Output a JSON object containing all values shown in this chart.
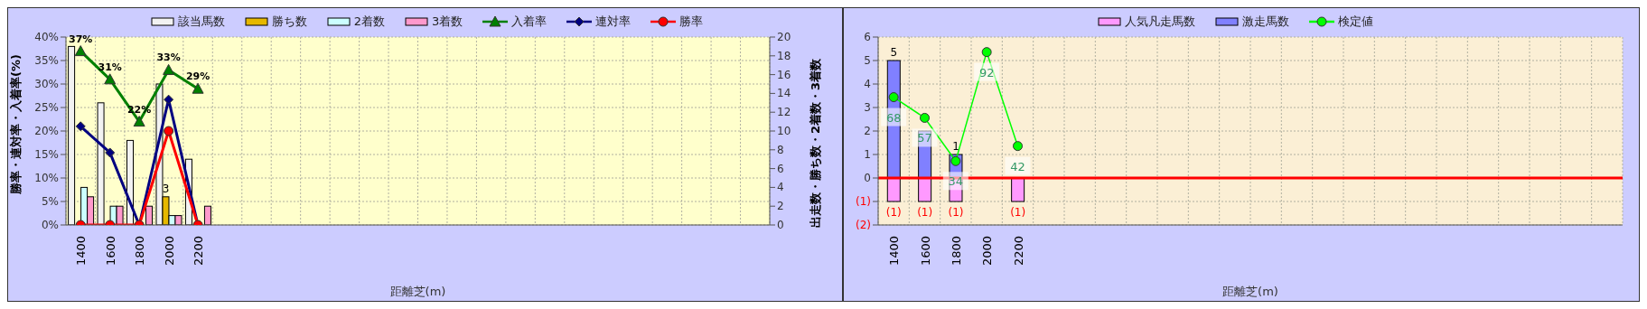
{
  "chart_data": [
    {
      "type": "bar",
      "categories": [
        "1400",
        "1600",
        "1800",
        "2000",
        "2200",
        null,
        null,
        null,
        null,
        null,
        null,
        null,
        null,
        null,
        null,
        null,
        null,
        null,
        null,
        null,
        null,
        null,
        null,
        null
      ],
      "xlabel": "距離芝(m)",
      "ylabel": "勝率・連対率・入着率(%)",
      "y2label": "出走数・勝ち数・2着数・3着数",
      "series": [
        {
          "name": "該当馬数",
          "axis": "y2",
          "color": "#f2f2f2",
          "values": [
            19,
            13,
            9,
            15,
            7,
            null,
            null,
            null,
            null,
            null,
            null,
            null,
            null,
            null,
            null,
            null,
            null,
            null,
            null,
            null,
            null,
            null,
            null,
            null
          ]
        },
        {
          "name": "勝ち数",
          "axis": "y2",
          "color": "#e6b800",
          "values": [
            0,
            0,
            0,
            3,
            0,
            null,
            null,
            null,
            null,
            null,
            null,
            null,
            null,
            null,
            null,
            null,
            null,
            null,
            null,
            null,
            null,
            null,
            null,
            null
          ],
          "value_labels": [
            null,
            null,
            null,
            "3",
            null,
            null,
            null,
            null,
            null,
            null,
            null,
            null,
            null,
            null,
            null,
            null,
            null,
            null,
            null,
            null,
            null,
            null,
            null,
            null
          ]
        },
        {
          "name": "2着数",
          "axis": "y2",
          "color": "#ccffff",
          "values": [
            4,
            2,
            0,
            1,
            0,
            null,
            null,
            null,
            null,
            null,
            null,
            null,
            null,
            null,
            null,
            null,
            null,
            null,
            null,
            null,
            null,
            null,
            null,
            null
          ]
        },
        {
          "name": "3着数",
          "axis": "y2",
          "color": "#ff99cc",
          "values": [
            3,
            2,
            2,
            1,
            2,
            null,
            null,
            null,
            null,
            null,
            null,
            null,
            null,
            null,
            null,
            null,
            null,
            null,
            null,
            null,
            null,
            null,
            null,
            null
          ]
        },
        {
          "name": "入着率",
          "type": "line",
          "axis": "y",
          "color": "#008000",
          "marker": "triangle",
          "values": [
            37,
            31,
            22,
            33,
            29,
            null,
            null,
            null,
            null,
            null,
            null,
            null,
            null,
            null,
            null,
            null,
            null,
            null,
            null,
            null,
            null,
            null,
            null,
            null
          ],
          "value_labels": [
            "37%",
            "31%",
            "22%",
            "33%",
            "29%",
            null,
            null,
            null,
            null,
            null,
            null,
            null,
            null,
            null,
            null,
            null,
            null,
            null,
            null,
            null,
            null,
            null,
            null,
            null
          ]
        },
        {
          "name": "連対率",
          "type": "line",
          "axis": "y",
          "color": "#000080",
          "marker": "diamond",
          "values": [
            21,
            15.4,
            0,
            26.7,
            0,
            null,
            null,
            null,
            null,
            null,
            null,
            null,
            null,
            null,
            null,
            null,
            null,
            null,
            null,
            null,
            null,
            null,
            null,
            null
          ]
        },
        {
          "name": "勝率",
          "type": "line",
          "axis": "y",
          "color": "#ff0000",
          "marker": "circle",
          "values": [
            0,
            0,
            0,
            20,
            0,
            null,
            null,
            null,
            null,
            null,
            null,
            null,
            null,
            null,
            null,
            null,
            null,
            null,
            null,
            null,
            null,
            null,
            null,
            null
          ]
        }
      ],
      "ylim": [
        0,
        40
      ],
      "yticks": [
        {
          "value": 0,
          "label": "0%"
        },
        {
          "value": 5,
          "label": "5%"
        },
        {
          "value": 10,
          "label": "10%"
        },
        {
          "value": 15,
          "label": "15%"
        },
        {
          "value": 20,
          "label": "20%"
        },
        {
          "value": 25,
          "label": "25%"
        },
        {
          "value": 30,
          "label": "30%"
        },
        {
          "value": 35,
          "label": "35%"
        },
        {
          "value": 40,
          "label": "40%"
        }
      ],
      "y2lim": [
        0,
        20
      ],
      "y2ticks": [
        0,
        2,
        4,
        6,
        8,
        10,
        12,
        14,
        16,
        18,
        20
      ],
      "grid": true,
      "legend": "top"
    },
    {
      "type": "bar",
      "categories": [
        "1400",
        "1600",
        "1800",
        "2000",
        "2200",
        null,
        null,
        null,
        null,
        null,
        null,
        null,
        null,
        null,
        null,
        null,
        null,
        null,
        null,
        null,
        null,
        null,
        null,
        null
      ],
      "xlabel": "距離芝(m)",
      "stacked": true,
      "series": [
        {
          "name": "人気凡走馬数",
          "axis": "y",
          "color": "#ff99ff",
          "values": [
            -1,
            -1,
            -1,
            null,
            -1,
            null,
            null,
            null,
            null,
            null,
            null,
            null,
            null,
            null,
            null,
            null,
            null,
            null,
            null,
            null,
            null,
            null,
            null,
            null
          ],
          "value_labels": [
            "(1)",
            "(1)",
            "(1)",
            null,
            "(1)",
            null,
            null,
            null,
            null,
            null,
            null,
            null,
            null,
            null,
            null,
            null,
            null,
            null,
            null,
            null,
            null,
            null,
            null,
            null
          ]
        },
        {
          "name": "激走馬数",
          "axis": "y",
          "color": "#8080ff",
          "values": [
            5,
            2,
            1,
            0,
            0,
            null,
            null,
            null,
            null,
            null,
            null,
            null,
            null,
            null,
            null,
            null,
            null,
            null,
            null,
            null,
            null,
            null,
            null,
            null
          ],
          "value_labels": [
            "5",
            null,
            "1",
            null,
            null,
            null,
            null,
            null,
            null,
            null,
            null,
            null,
            null,
            null,
            null,
            null,
            null,
            null,
            null,
            null,
            null,
            null,
            null,
            null
          ]
        },
        {
          "name": "検定値",
          "type": "line",
          "axis": "y2",
          "color": "#00ff00",
          "marker": "circle",
          "values": [
            68,
            57,
            34,
            92,
            42,
            null,
            null,
            null,
            null,
            null,
            null,
            null,
            null,
            null,
            null,
            null,
            null,
            null,
            null,
            null,
            null,
            null,
            null,
            null
          ],
          "value_labels": [
            "68",
            "57",
            "34",
            "92",
            "42",
            null,
            null,
            null,
            null,
            null,
            null,
            null,
            null,
            null,
            null,
            null,
            null,
            null,
            null,
            null,
            null,
            null,
            null,
            null
          ]
        }
      ],
      "ylim": [
        -2,
        6
      ],
      "yticks": [
        {
          "value": -2,
          "label": "(2)"
        },
        {
          "value": -1,
          "label": "(1)"
        },
        0,
        1,
        2,
        3,
        4,
        5,
        6
      ],
      "y2lim": [
        0,
        100
      ],
      "ref_lines": [
        {
          "axis": "y",
          "value": 0,
          "color": "#ff0000"
        }
      ],
      "grid": true,
      "legend": "top"
    }
  ]
}
